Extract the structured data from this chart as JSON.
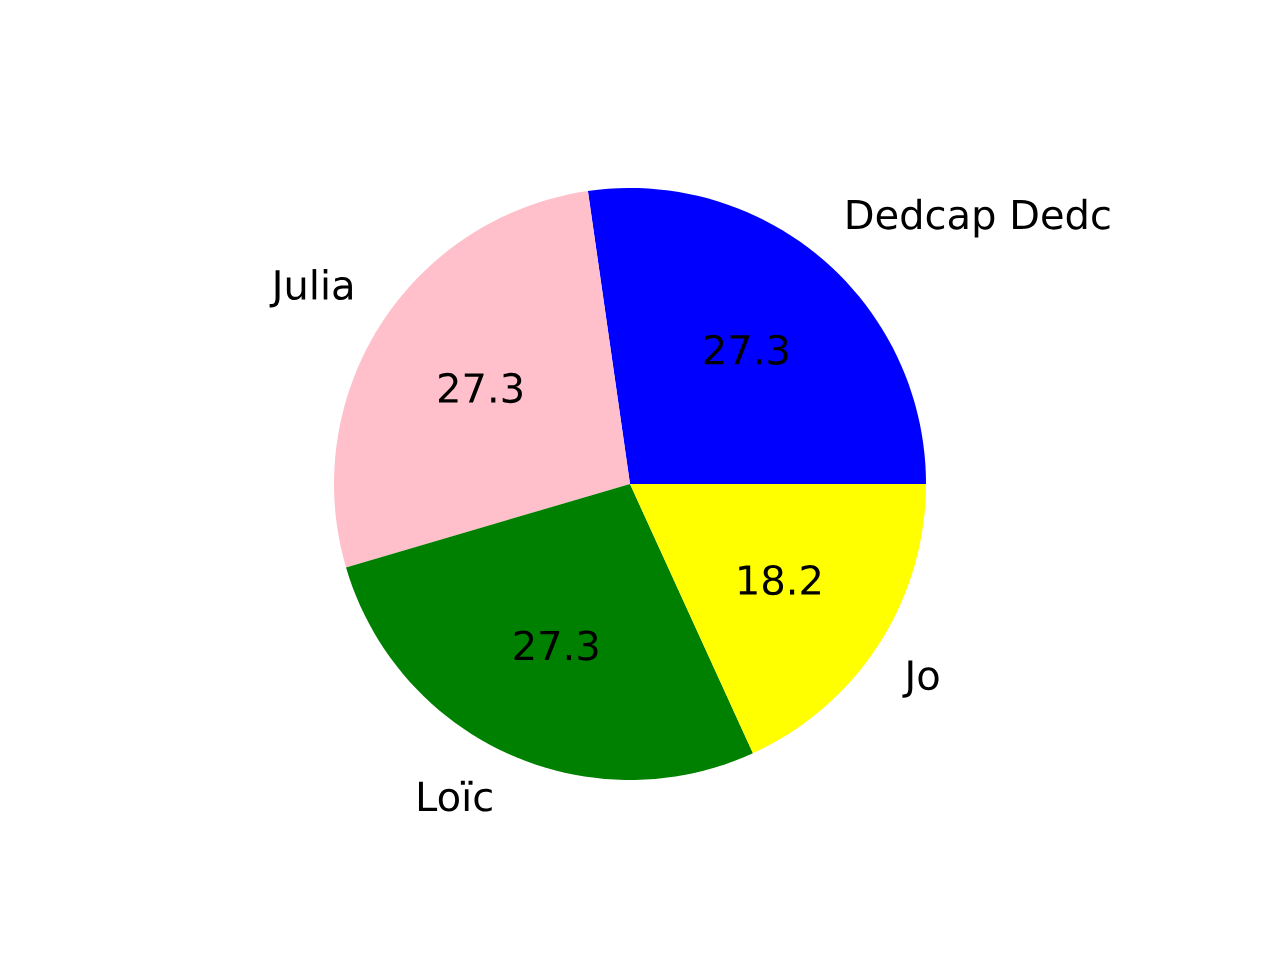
{
  "chart_data": {
    "type": "pie",
    "categories": [
      "Dedcap Dedc",
      "Julia",
      "Loïc",
      "Jo"
    ],
    "values": [
      27.3,
      27.3,
      27.3,
      18.2
    ],
    "colors": [
      "#0000ff",
      "#ffc0cb",
      "#008000",
      "#ffff00"
    ],
    "data_labels": true
  }
}
